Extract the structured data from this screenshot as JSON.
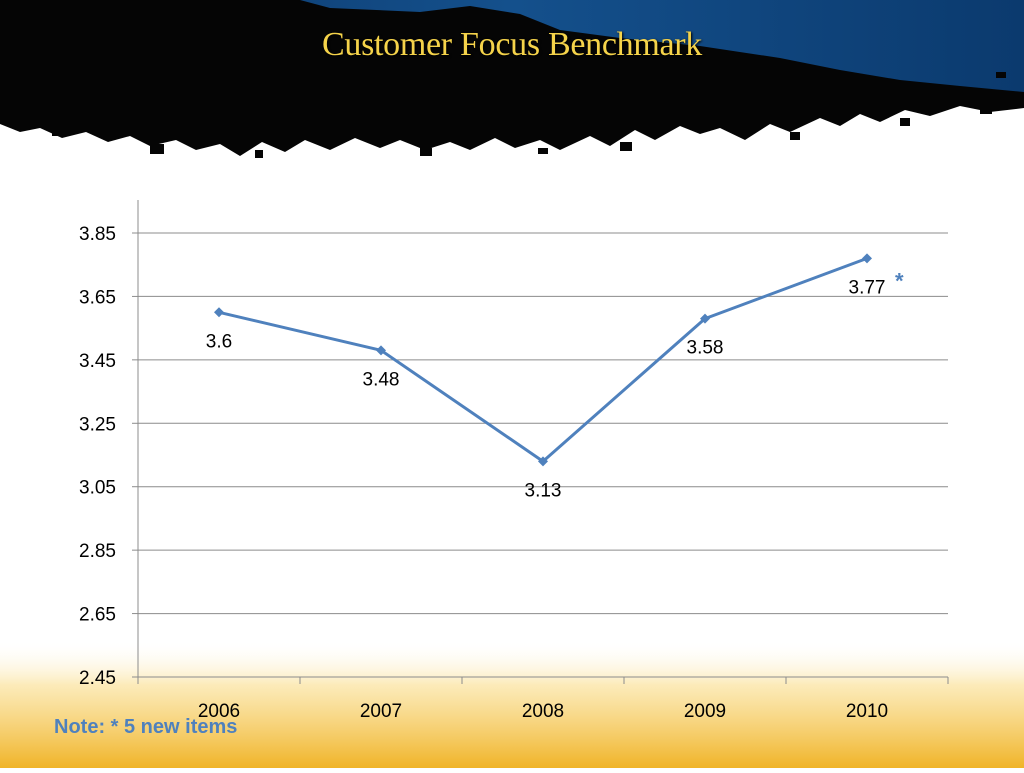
{
  "slide": {
    "title": "Customer Focus Benchmark",
    "note": "Note: * 5 new items",
    "colors": {
      "banner_blue": "#0d3f73",
      "banner_black": "#050505",
      "title_gold": "#f5d34a",
      "line_blue": "#4f81bd",
      "bottom_gold": "#f0b428"
    }
  },
  "chart_data": {
    "type": "line",
    "title": "",
    "xlabel": "",
    "ylabel": "",
    "categories": [
      "2006",
      "2007",
      "2008",
      "2009",
      "2010"
    ],
    "series": [
      {
        "values": [
          3.6,
          3.48,
          3.13,
          3.58,
          3.77
        ],
        "color": "#4f81bd",
        "marker": "diamond"
      }
    ],
    "data_labels": [
      "3.6",
      "3.48",
      "3.13",
      "3.58",
      "3.77"
    ],
    "yticks": [
      "2.45",
      "2.65",
      "2.85",
      "3.05",
      "3.25",
      "3.45",
      "3.65",
      "3.85"
    ],
    "ylim": [
      2.45,
      3.85
    ],
    "grid": true,
    "legend": "none",
    "annotation": {
      "text": "*",
      "category": "2010"
    }
  }
}
